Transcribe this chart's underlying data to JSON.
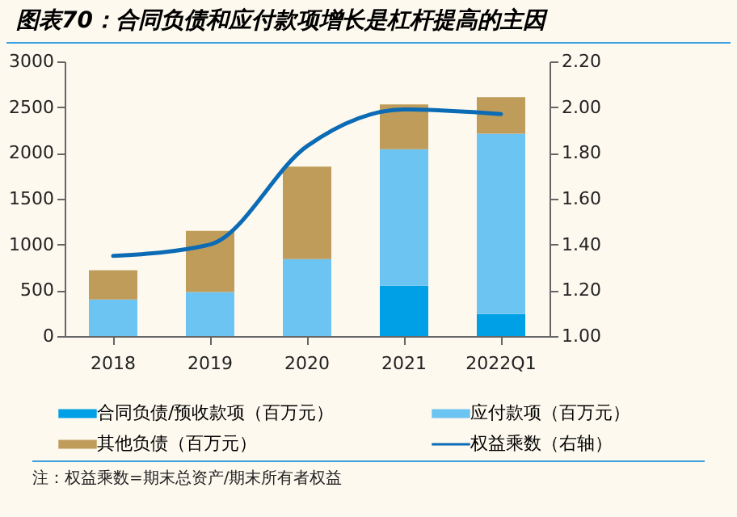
{
  "chart_data": {
    "type": "bar",
    "title": "图表70：合同负债和应付款项增长是杠杆提高的主因",
    "categories": [
      "2018",
      "2019",
      "2020",
      "2021",
      "2022Q1"
    ],
    "stacked": true,
    "series": [
      {
        "name": "合同负债/预收款项（百万元）",
        "color": "#00a0e6",
        "values": [
          null,
          null,
          null,
          550,
          240
        ]
      },
      {
        "name": "应付款项（百万元）",
        "color": "#6cc4f2",
        "values": [
          400,
          480,
          840,
          1490,
          1970
        ]
      },
      {
        "name": "其他负债（百万元）",
        "color": "#bf9c5a",
        "values": [
          320,
          670,
          1010,
          490,
          400
        ]
      },
      {
        "name": "权益乘数（右轴）",
        "color": "#0c6bb5",
        "type": "line",
        "axis": "y2",
        "values": [
          1.35,
          1.4,
          1.83,
          1.99,
          1.97
        ]
      }
    ],
    "ylim": [
      0,
      3000
    ],
    "yticks": [
      0,
      500,
      1000,
      1500,
      2000,
      2500,
      3000
    ],
    "y2lim": [
      1.0,
      2.2
    ],
    "y2ticks": [
      {
        "value": 1.0,
        "label": "1.00"
      },
      {
        "value": 1.2,
        "label": "1.20"
      },
      {
        "value": 1.4,
        "label": "1.40"
      },
      {
        "value": 1.6,
        "label": "1.60"
      },
      {
        "value": 1.8,
        "label": "1.80"
      },
      {
        "value": 2.0,
        "label": "2.00"
      },
      {
        "value": 2.2,
        "label": "2.20"
      }
    ],
    "grid": false,
    "legend": "bottom",
    "marker": "none",
    "line_style": "solid",
    "annotations": [
      "注：权益乘数=期末总资产/期末所有者权益"
    ]
  }
}
